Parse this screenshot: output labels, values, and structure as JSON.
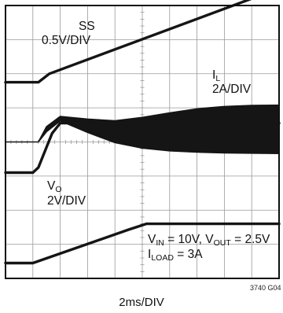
{
  "chart_data": {
    "type": "line",
    "title": "",
    "xlabel": "2ms/DIV",
    "figure_id": "3740 G04",
    "x_divisions": 10,
    "y_divisions": 8,
    "grid": true,
    "x_unit": "ms",
    "x_range": [
      0,
      20
    ],
    "series": [
      {
        "name": "SS",
        "scale": "0.5V/DIV",
        "x": [
          0,
          2.4,
          3.2,
          20
        ],
        "y_div": [
          5.75,
          5.75,
          6.0,
          8.5
        ]
      },
      {
        "name": "I_L",
        "scale": "2A/DIV",
        "envelope": true,
        "x": [
          0,
          1.8,
          2.4,
          3.0,
          4.0,
          6.0,
          8.0,
          10.0,
          12.0,
          14.0,
          16.0,
          18.0,
          20.0
        ],
        "y_div_upper": [
          4.0,
          4.0,
          4.0,
          4.45,
          4.75,
          4.67,
          4.62,
          4.72,
          4.85,
          4.97,
          5.04,
          5.07,
          5.08
        ],
        "y_div_lower": [
          4.0,
          4.0,
          4.0,
          4.3,
          4.62,
          4.28,
          3.98,
          3.82,
          3.74,
          3.7,
          3.68,
          3.67,
          3.66
        ]
      },
      {
        "name": "V_O",
        "scale": "2V/DIV",
        "x": [
          0,
          2.0,
          2.4,
          3.4,
          4.0,
          20
        ],
        "y_div": [
          3.1,
          3.1,
          3.25,
          4.25,
          4.55,
          4.55
        ]
      },
      {
        "name": "",
        "x": [
          0,
          2.0,
          9.0,
          10.3,
          20
        ],
        "y_div": [
          0.45,
          0.45,
          1.43,
          1.6,
          1.6
        ]
      }
    ]
  },
  "labels": {
    "ss_name": "SS",
    "ss_scale": "0.5V/DIV",
    "il_main": "I",
    "il_sub": "L",
    "il_scale": "2A/DIV",
    "vo_main": "V",
    "vo_sub": "O",
    "vo_scale": "2V/DIV",
    "cond_vin_main": "V",
    "cond_vin_sub": "IN",
    "cond_vin_rest": " = 10V, V",
    "cond_vout_sub": "OUT",
    "cond_vout_rest": " = 2.5V",
    "cond_iload_main": "I",
    "cond_iload_sub": "LOAD",
    "cond_iload_rest": " = 3A"
  },
  "colors": {
    "trace": "#151515",
    "grid": "#9a9a9a",
    "frame": "#111111"
  }
}
